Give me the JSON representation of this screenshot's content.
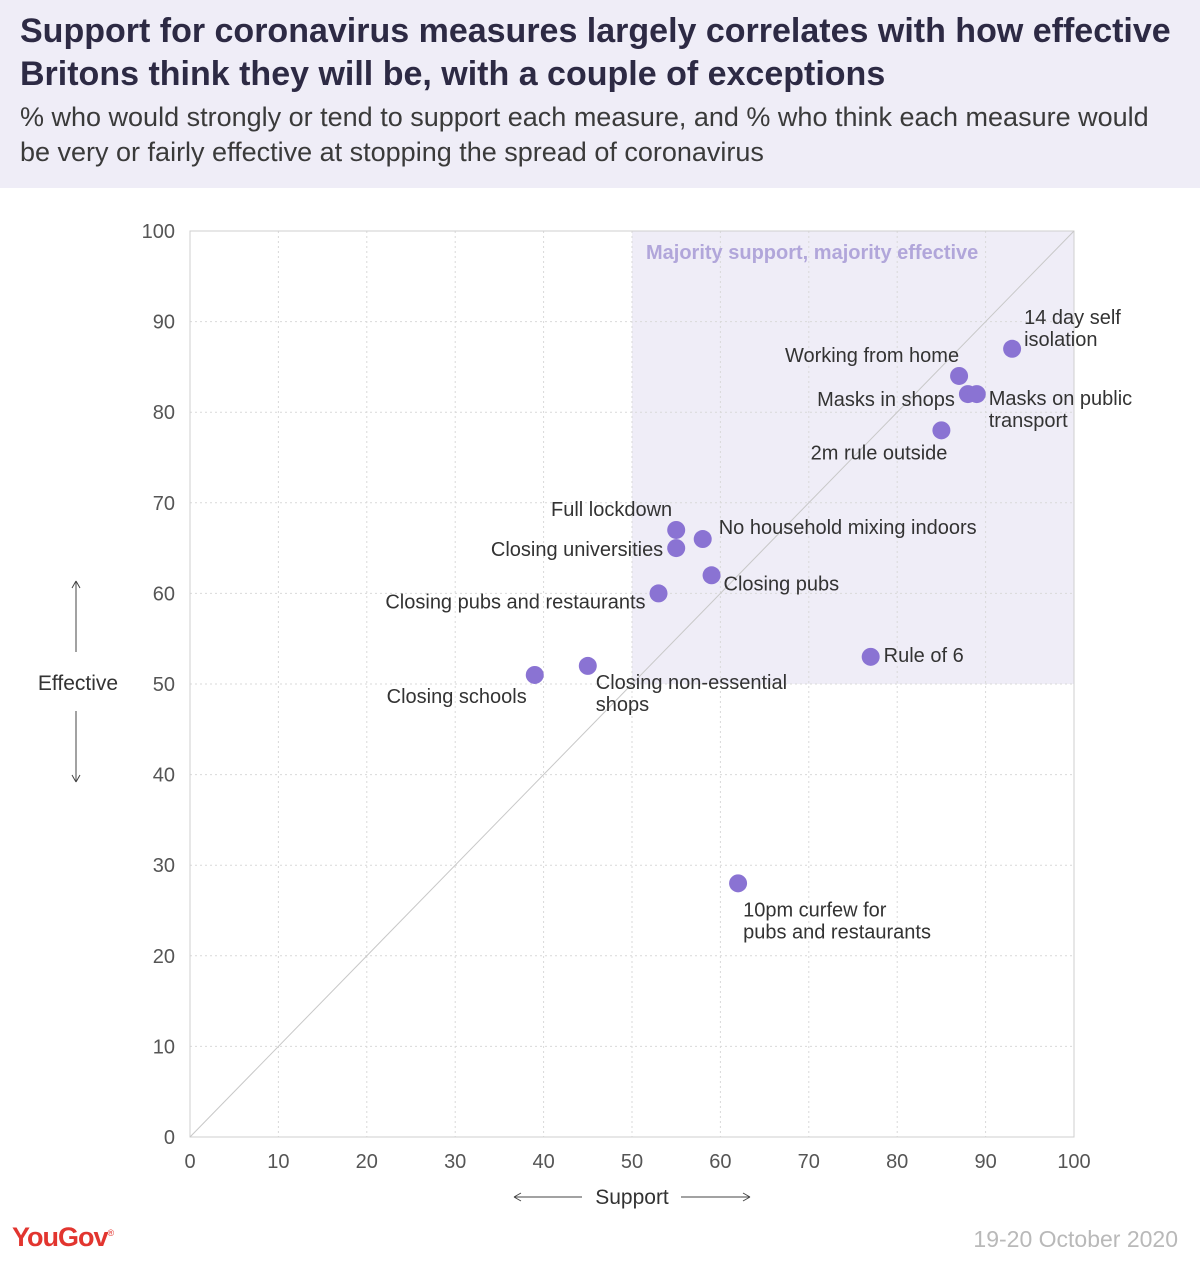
{
  "header": {
    "title": "Support for coronavirus measures largely correlates with how effective Britons think they will be, with a couple of exceptions",
    "subtitle": "% who would strongly or tend to support each measure, and % who think each measure would be very or fairly effective at stopping the spread of coronavirus"
  },
  "footer": {
    "logo": "YouGov",
    "date": "19-20 October 2020"
  },
  "colors": {
    "point": "#8a73d3",
    "quadrant": "#efedf7",
    "quadrant_label": "#b1a6da",
    "header_bg": "#efedf7",
    "logo": "#e2352f"
  },
  "chart_data": {
    "type": "scatter",
    "title": "Support for coronavirus measures largely correlates with how effective Britons think they will be, with a couple of exceptions",
    "subtitle": "% who would strongly or tend to support each measure, and % who think each measure would be very or fairly effective at stopping the spread of coronavirus",
    "xlabel": "Support",
    "ylabel": "Effective",
    "xlim": [
      0,
      100
    ],
    "ylim": [
      0,
      100
    ],
    "xticks": [
      0,
      10,
      20,
      30,
      40,
      50,
      60,
      70,
      80,
      90,
      100
    ],
    "yticks": [
      0,
      10,
      20,
      30,
      40,
      50,
      60,
      70,
      80,
      90,
      100
    ],
    "grid": true,
    "diagonal_reference_line": true,
    "region": {
      "label": "Majority support, majority effective",
      "x": [
        50,
        100
      ],
      "y": [
        50,
        100
      ]
    },
    "points": [
      {
        "label": "14 day self isolation",
        "x": 93,
        "y": 87
      },
      {
        "label": "Working from home",
        "x": 87,
        "y": 84
      },
      {
        "label": "Masks in shops",
        "x": 88,
        "y": 82
      },
      {
        "label": "Masks on public transport",
        "x": 89,
        "y": 82
      },
      {
        "label": "2m rule outside",
        "x": 85,
        "y": 78
      },
      {
        "label": "Full lockdown",
        "x": 55,
        "y": 67
      },
      {
        "label": "No household mixing indoors",
        "x": 58,
        "y": 66
      },
      {
        "label": "Closing universities",
        "x": 55,
        "y": 65
      },
      {
        "label": "Closing pubs",
        "x": 59,
        "y": 62
      },
      {
        "label": "Closing pubs and restaurants",
        "x": 53,
        "y": 60
      },
      {
        "label": "Rule of 6",
        "x": 77,
        "y": 53
      },
      {
        "label": "Closing non-essential shops",
        "x": 45,
        "y": 52
      },
      {
        "label": "Closing schools",
        "x": 39,
        "y": 51
      },
      {
        "label": "10pm curfew for pubs and restaurants",
        "x": 62,
        "y": 28
      }
    ]
  }
}
